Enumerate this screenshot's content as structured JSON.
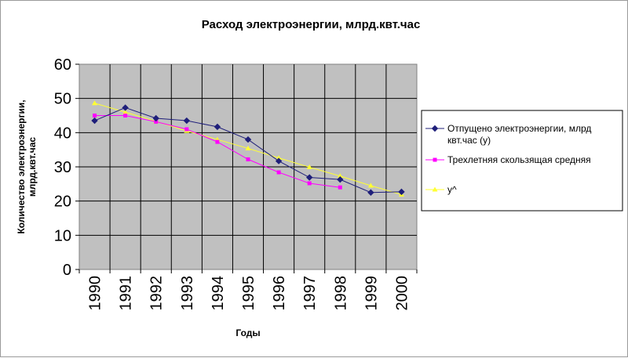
{
  "chart_data": {
    "type": "line",
    "title": "Расход электроэнергии, млрд.квт.час",
    "xlabel": "Годы",
    "ylabel_lines": [
      "Количество электроэнергии,",
      "млрд.квт.час"
    ],
    "categories": [
      "1990",
      "1991",
      "1992",
      "1993",
      "1994",
      "1995",
      "1996",
      "1997",
      "1998",
      "1999",
      "2000"
    ],
    "ylim": [
      0,
      60
    ],
    "yticks": [
      "0",
      "10",
      "20",
      "30",
      "40",
      "50",
      "60"
    ],
    "grid": true,
    "legend_position": "right",
    "series": [
      {
        "name": "Отпущено электроэнергии, млрд квт.час (y)",
        "color": "#1f1f7a",
        "marker": "diamond",
        "values": [
          43.5,
          47.3,
          44.2,
          43.5,
          41.7,
          38.0,
          31.7,
          26.9,
          26.3,
          22.5,
          22.7
        ]
      },
      {
        "name": "Трехлетняя скользящая средняя",
        "color": "#ff00ff",
        "marker": "square",
        "values": [
          45.0,
          45.0,
          43.2,
          41.0,
          37.3,
          32.2,
          28.4,
          25.2,
          24.0,
          null,
          null
        ]
      },
      {
        "name": "y^",
        "color": "#ffff33",
        "marker": "triangle",
        "values": [
          48.6,
          46.0,
          43.3,
          40.5,
          38.0,
          35.4,
          32.6,
          29.9,
          27.3,
          24.5,
          21.9
        ]
      }
    ]
  }
}
